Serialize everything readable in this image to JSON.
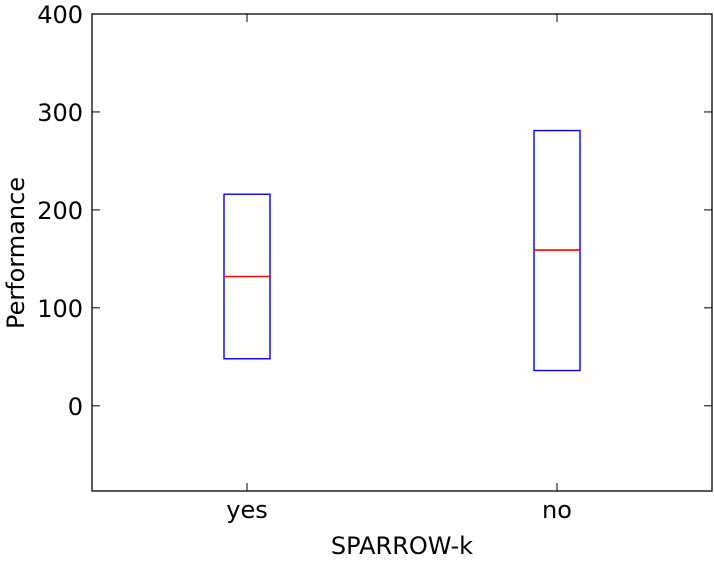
{
  "chart_data": {
    "type": "box",
    "title": "",
    "xlabel": "SPARROW-k",
    "ylabel": "Performance",
    "categories": [
      "yes",
      "no"
    ],
    "boxes": [
      {
        "category": "yes",
        "q1": 48,
        "median": 132,
        "q3": 216
      },
      {
        "category": "no",
        "q1": 36,
        "median": 159,
        "q3": 281
      }
    ],
    "ylim": [
      -87,
      400
    ],
    "yticks": [
      0,
      100,
      200,
      300,
      400
    ],
    "ytick_labels": [
      "0",
      "100",
      "200",
      "300",
      "400"
    ],
    "grid": false,
    "legend": "none",
    "colors": {
      "box": "#0000ff",
      "median": "#ff0000",
      "axes": "#000000",
      "background": "#ffffff"
    }
  }
}
